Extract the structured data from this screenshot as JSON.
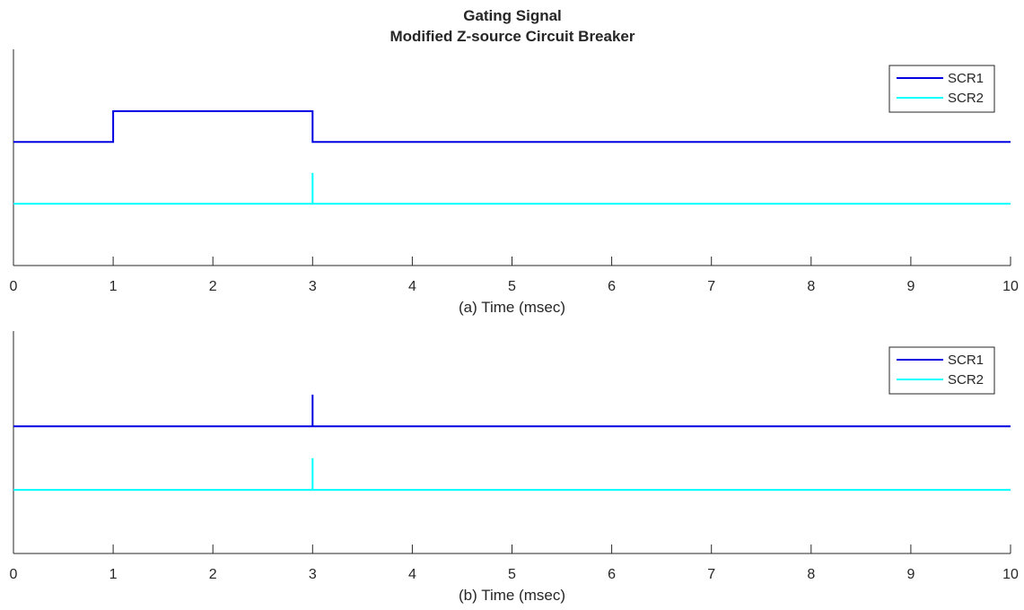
{
  "figure": {
    "title_line1": "Gating Signal",
    "title_line2": "Modified Z-source Circuit Breaker"
  },
  "colors": {
    "SCR1": "#0000e0",
    "SCR2": "#00ffff",
    "axis": "#262626",
    "legend_border": "#262626"
  },
  "chart_data": [
    {
      "type": "line",
      "xlabel": "(a) Time (msec)",
      "ylabel": "",
      "xlim": [
        0,
        10
      ],
      "ylim": [
        -0.5,
        3
      ],
      "xticks": [
        0,
        1,
        2,
        3,
        4,
        5,
        6,
        7,
        8,
        9,
        10
      ],
      "yticks": [],
      "grid": false,
      "legend_position": "top-right",
      "series": [
        {
          "name": "SCR1",
          "color_key": "SCR1",
          "x": [
            0,
            1,
            1,
            3,
            3,
            10
          ],
          "y": [
            1.5,
            1.5,
            2.0,
            2.0,
            1.5,
            1.5
          ]
        },
        {
          "name": "SCR2",
          "color_key": "SCR2",
          "x": [
            0,
            3,
            3,
            3,
            10
          ],
          "y": [
            0.5,
            0.5,
            1.0,
            0.5,
            0.5
          ]
        }
      ]
    },
    {
      "type": "line",
      "xlabel": "(b) Time (msec)",
      "ylabel": "",
      "xlim": [
        0,
        10
      ],
      "ylim": [
        -0.5,
        3
      ],
      "xticks": [
        0,
        1,
        2,
        3,
        4,
        5,
        6,
        7,
        8,
        9,
        10
      ],
      "yticks": [],
      "grid": false,
      "legend_position": "top-right",
      "series": [
        {
          "name": "SCR1",
          "color_key": "SCR1",
          "x": [
            0,
            3,
            3,
            3,
            10
          ],
          "y": [
            1.5,
            1.5,
            2.0,
            1.5,
            1.5
          ]
        },
        {
          "name": "SCR2",
          "color_key": "SCR2",
          "x": [
            0,
            3,
            3,
            3,
            10
          ],
          "y": [
            0.5,
            0.5,
            1.0,
            0.5,
            0.5
          ]
        }
      ]
    }
  ]
}
